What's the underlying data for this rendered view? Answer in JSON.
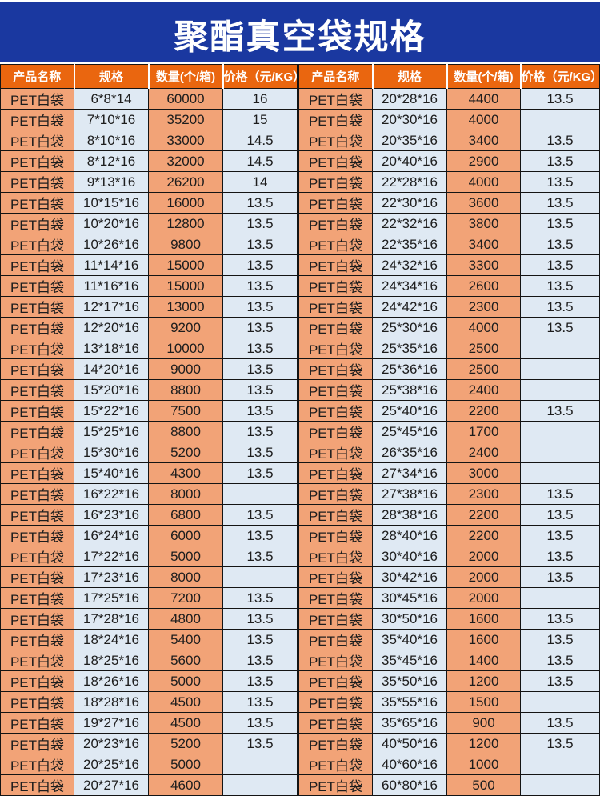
{
  "title": "聚酯真空袋规格",
  "table": {
    "columns": [
      "产品名称",
      "规格",
      "数量(个/箱)",
      "价格（元/KG）"
    ],
    "left_rows": [
      [
        "PET白袋",
        "6*8*14",
        "60000",
        "16"
      ],
      [
        "PET白袋",
        "7*10*16",
        "35200",
        "15"
      ],
      [
        "PET白袋",
        "8*10*16",
        "33000",
        "14.5"
      ],
      [
        "PET白袋",
        "8*12*16",
        "32000",
        "14.5"
      ],
      [
        "PET白袋",
        "9*13*16",
        "26200",
        "14"
      ],
      [
        "PET白袋",
        "10*15*16",
        "16000",
        "13.5"
      ],
      [
        "PET白袋",
        "10*20*16",
        "12800",
        "13.5"
      ],
      [
        "PET白袋",
        "10*26*16",
        "9800",
        "13.5"
      ],
      [
        "PET白袋",
        "11*14*16",
        "15000",
        "13.5"
      ],
      [
        "PET白袋",
        "11*16*16",
        "15000",
        "13.5"
      ],
      [
        "PET白袋",
        "12*17*16",
        "13000",
        "13.5"
      ],
      [
        "PET白袋",
        "12*20*16",
        "9200",
        "13.5"
      ],
      [
        "PET白袋",
        "13*18*16",
        "10000",
        "13.5"
      ],
      [
        "PET白袋",
        "14*20*16",
        "9000",
        "13.5"
      ],
      [
        "PET白袋",
        "15*20*16",
        "8800",
        "13.5"
      ],
      [
        "PET白袋",
        "15*22*16",
        "7500",
        "13.5"
      ],
      [
        "PET白袋",
        "15*25*16",
        "8800",
        "13.5"
      ],
      [
        "PET白袋",
        "15*30*16",
        "5200",
        "13.5"
      ],
      [
        "PET白袋",
        "15*40*16",
        "4300",
        "13.5"
      ],
      [
        "PET白袋",
        "16*22*16",
        "8000",
        ""
      ],
      [
        "PET白袋",
        "16*23*16",
        "6800",
        "13.5"
      ],
      [
        "PET白袋",
        "16*24*16",
        "6000",
        "13.5"
      ],
      [
        "PET白袋",
        "17*22*16",
        "5000",
        "13.5"
      ],
      [
        "PET白袋",
        "17*23*16",
        "8000",
        ""
      ],
      [
        "PET白袋",
        "17*25*16",
        "7200",
        "13.5"
      ],
      [
        "PET白袋",
        "17*28*16",
        "4800",
        "13.5"
      ],
      [
        "PET白袋",
        "18*24*16",
        "5400",
        "13.5"
      ],
      [
        "PET白袋",
        "18*25*16",
        "5600",
        "13.5"
      ],
      [
        "PET白袋",
        "18*26*16",
        "5000",
        "13.5"
      ],
      [
        "PET白袋",
        "18*28*16",
        "4500",
        "13.5"
      ],
      [
        "PET白袋",
        "19*27*16",
        "4500",
        "13.5"
      ],
      [
        "PET白袋",
        "20*23*16",
        "5200",
        "13.5"
      ],
      [
        "PET白袋",
        "20*25*16",
        "5000",
        ""
      ],
      [
        "PET白袋",
        "20*27*16",
        "4600",
        ""
      ]
    ],
    "right_rows": [
      [
        "PET白袋",
        "20*28*16",
        "4400",
        "13.5"
      ],
      [
        "PET白袋",
        "20*30*16",
        "4000",
        ""
      ],
      [
        "PET白袋",
        "20*35*16",
        "3400",
        "13.5"
      ],
      [
        "PET白袋",
        "20*40*16",
        "2900",
        "13.5"
      ],
      [
        "PET白袋",
        "22*28*16",
        "4000",
        "13.5"
      ],
      [
        "PET白袋",
        "22*30*16",
        "3600",
        "13.5"
      ],
      [
        "PET白袋",
        "22*32*16",
        "3800",
        "13.5"
      ],
      [
        "PET白袋",
        "22*35*16",
        "3400",
        "13.5"
      ],
      [
        "PET白袋",
        "24*32*16",
        "3300",
        "13.5"
      ],
      [
        "PET白袋",
        "24*34*16",
        "2600",
        "13.5"
      ],
      [
        "PET白袋",
        "24*42*16",
        "2300",
        "13.5"
      ],
      [
        "PET白袋",
        "25*30*16",
        "4000",
        "13.5"
      ],
      [
        "PET白袋",
        "25*35*16",
        "2500",
        ""
      ],
      [
        "PET白袋",
        "25*36*16",
        "2500",
        ""
      ],
      [
        "PET白袋",
        "25*38*16",
        "2400",
        ""
      ],
      [
        "PET白袋",
        "25*40*16",
        "2200",
        "13.5"
      ],
      [
        "PET白袋",
        "25*45*16",
        "1700",
        ""
      ],
      [
        "PET白袋",
        "26*35*16",
        "2400",
        ""
      ],
      [
        "PET白袋",
        "27*34*16",
        "3000",
        ""
      ],
      [
        "PET白袋",
        "27*38*16",
        "2300",
        "13.5"
      ],
      [
        "PET白袋",
        "28*38*16",
        "2200",
        "13.5"
      ],
      [
        "PET白袋",
        "28*40*16",
        "2200",
        "13.5"
      ],
      [
        "PET白袋",
        "30*40*16",
        "2000",
        "13.5"
      ],
      [
        "PET白袋",
        "30*42*16",
        "2000",
        "13.5"
      ],
      [
        "PET白袋",
        "30*45*16",
        "2000",
        ""
      ],
      [
        "PET白袋",
        "30*50*16",
        "1600",
        "13.5"
      ],
      [
        "PET白袋",
        "35*40*16",
        "1600",
        "13.5"
      ],
      [
        "PET白袋",
        "35*45*16",
        "1400",
        "13.5"
      ],
      [
        "PET白袋",
        "35*50*16",
        "1200",
        "13.5"
      ],
      [
        "PET白袋",
        "35*55*16",
        "1500",
        ""
      ],
      [
        "PET白袋",
        "35*65*16",
        "900",
        "13.5"
      ],
      [
        "PET白袋",
        "40*50*16",
        "1200",
        "13.5"
      ],
      [
        "PET白袋",
        "40*60*16",
        "1000",
        ""
      ],
      [
        "PET白袋",
        "60*80*16",
        "500",
        ""
      ]
    ]
  },
  "colors": {
    "banner_blue": "#1A38A0",
    "header_orange": "#EA660F",
    "product_qty_cell_salmon": "#F2A377",
    "spec_price_cell_blue": "#DFE9F3",
    "border_dark": "#141414",
    "text_dark": "#1D1D1D",
    "title_text": "#FFFFFF"
  }
}
